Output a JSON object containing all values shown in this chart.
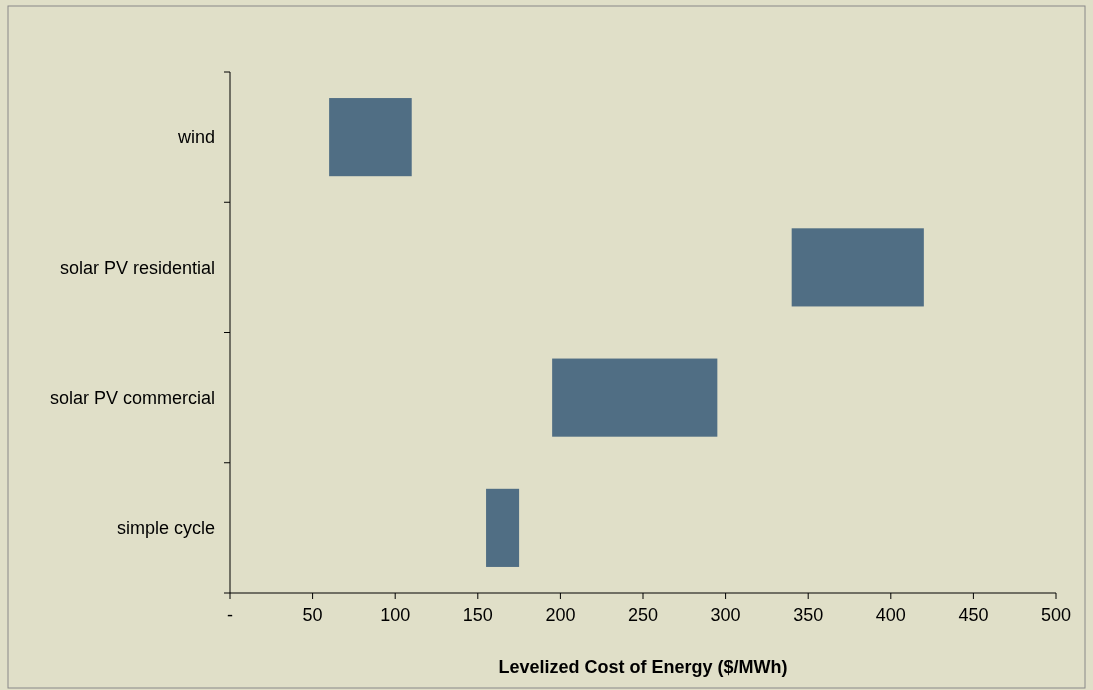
{
  "chart_data": {
    "type": "bar",
    "orientation": "horizontal",
    "xlabel": "Levelized Cost of Energy ($/MWh)",
    "categories": [
      "wind",
      "solar PV residential",
      "solar PV commercial",
      "simple cycle"
    ],
    "base": [
      60,
      340,
      195,
      155
    ],
    "values": [
      50,
      80,
      100,
      20
    ],
    "color": "#506e84",
    "xlim": [
      0,
      500
    ],
    "xticks": [
      {
        "value": 0,
        "label": "-"
      },
      50,
      100,
      150,
      200,
      250,
      300,
      350,
      400,
      450,
      500
    ],
    "grid": false
  }
}
